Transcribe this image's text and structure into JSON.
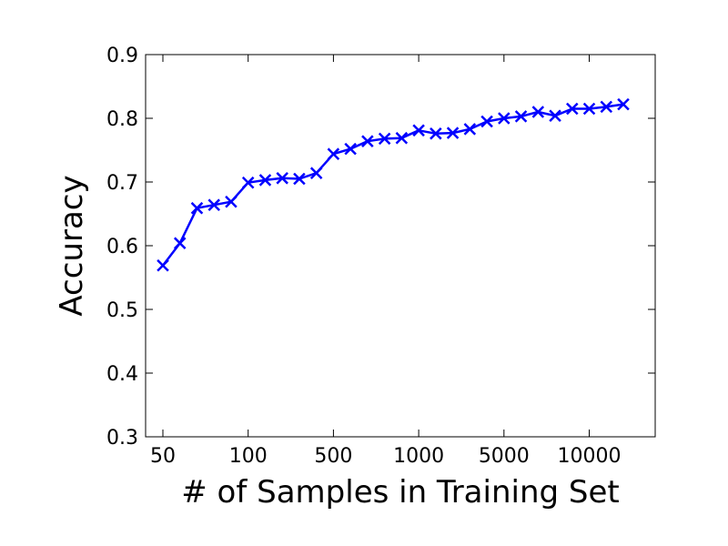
{
  "chart_data": {
    "type": "line",
    "title": "",
    "xlabel": "# of Samples in Training Set",
    "ylabel": "Accuracy",
    "ylim": [
      0.3,
      0.9
    ],
    "grid": false,
    "x_tick_labels": [
      "50",
      "100",
      "500",
      "1000",
      "5000",
      "10000"
    ],
    "y_tick_labels": [
      "0.3",
      "0.4",
      "0.5",
      "0.6",
      "0.7",
      "0.8",
      "0.9"
    ],
    "series": [
      {
        "color": "#0000ff",
        "marker": "x",
        "values": [
          0.569,
          0.604,
          0.659,
          0.664,
          0.669,
          0.699,
          0.703,
          0.706,
          0.705,
          0.714,
          0.744,
          0.752,
          0.764,
          0.768,
          0.769,
          0.781,
          0.776,
          0.777,
          0.783,
          0.795,
          0.8,
          0.803,
          0.81,
          0.804,
          0.815,
          0.815,
          0.818,
          0.822
        ]
      }
    ]
  }
}
